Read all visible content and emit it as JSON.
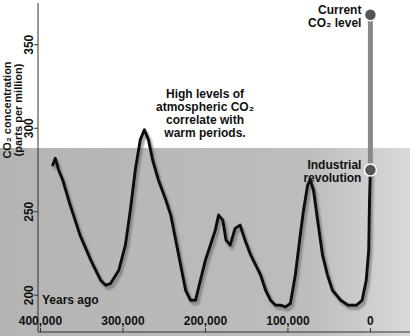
{
  "chart_data": {
    "type": "line",
    "y_label": "CO₂ concentration (parts per million)",
    "x_label": "Years ago",
    "note": "High levels of atmospheric CO₂ correlate with warm periods.",
    "xlim": [
      403000,
      -48000
    ],
    "ylim": [
      178,
      375
    ],
    "xticks": [
      {
        "value": 400000,
        "label": "400,000"
      },
      {
        "value": 300000,
        "label": "300,000"
      },
      {
        "value": 200000,
        "label": "200,000"
      },
      {
        "value": 100000,
        "label": "100,000"
      },
      0
    ],
    "yticks": [
      200,
      250,
      300,
      350
    ],
    "grid": false,
    "series": [
      {
        "color": "#111111",
        "line_style": "solid",
        "x": [
          385000,
          382000,
          378000,
          373000,
          364000,
          352000,
          339000,
          327000,
          321000,
          315000,
          305000,
          297000,
          291000,
          285000,
          279000,
          274000,
          269000,
          264000,
          257000,
          248000,
          242000,
          236000,
          230000,
          224000,
          218000,
          212000,
          206000,
          200000,
          194000,
          188000,
          184000,
          179000,
          175000,
          170000,
          164000,
          158000,
          152000,
          145000,
          139000,
          133000,
          127000,
          121000,
          115000,
          109000,
          103000,
          97000,
          91000,
          85000,
          81000,
          76000,
          73000,
          69000,
          64000,
          58000,
          52000,
          46000,
          36000,
          27000,
          17000,
          10000,
          5000,
          2000,
          1000,
          0
        ],
        "values": [
          278,
          282,
          275,
          269,
          254,
          236,
          221,
          209,
          206,
          207,
          215,
          230,
          251,
          275,
          293,
          299,
          293,
          281,
          269,
          257,
          248,
          233,
          218,
          203,
          197,
          197,
          209,
          221,
          230,
          239,
          248,
          245,
          233,
          230,
          240,
          242,
          233,
          224,
          218,
          212,
          203,
          197,
          194,
          194,
          193,
          195,
          212,
          236,
          251,
          266,
          269,
          263,
          245,
          224,
          212,
          203,
          197,
          194,
          194,
          197,
          209,
          227,
          257,
          275
        ]
      },
      {
        "color": "#8a8a8a",
        "line_style": "solid",
        "marker": "circle",
        "x": [
          0,
          0
        ],
        "values": [
          275,
          368
        ],
        "labels": [
          "Industrial revolution",
          "Current CO₂ level"
        ]
      }
    ]
  }
}
